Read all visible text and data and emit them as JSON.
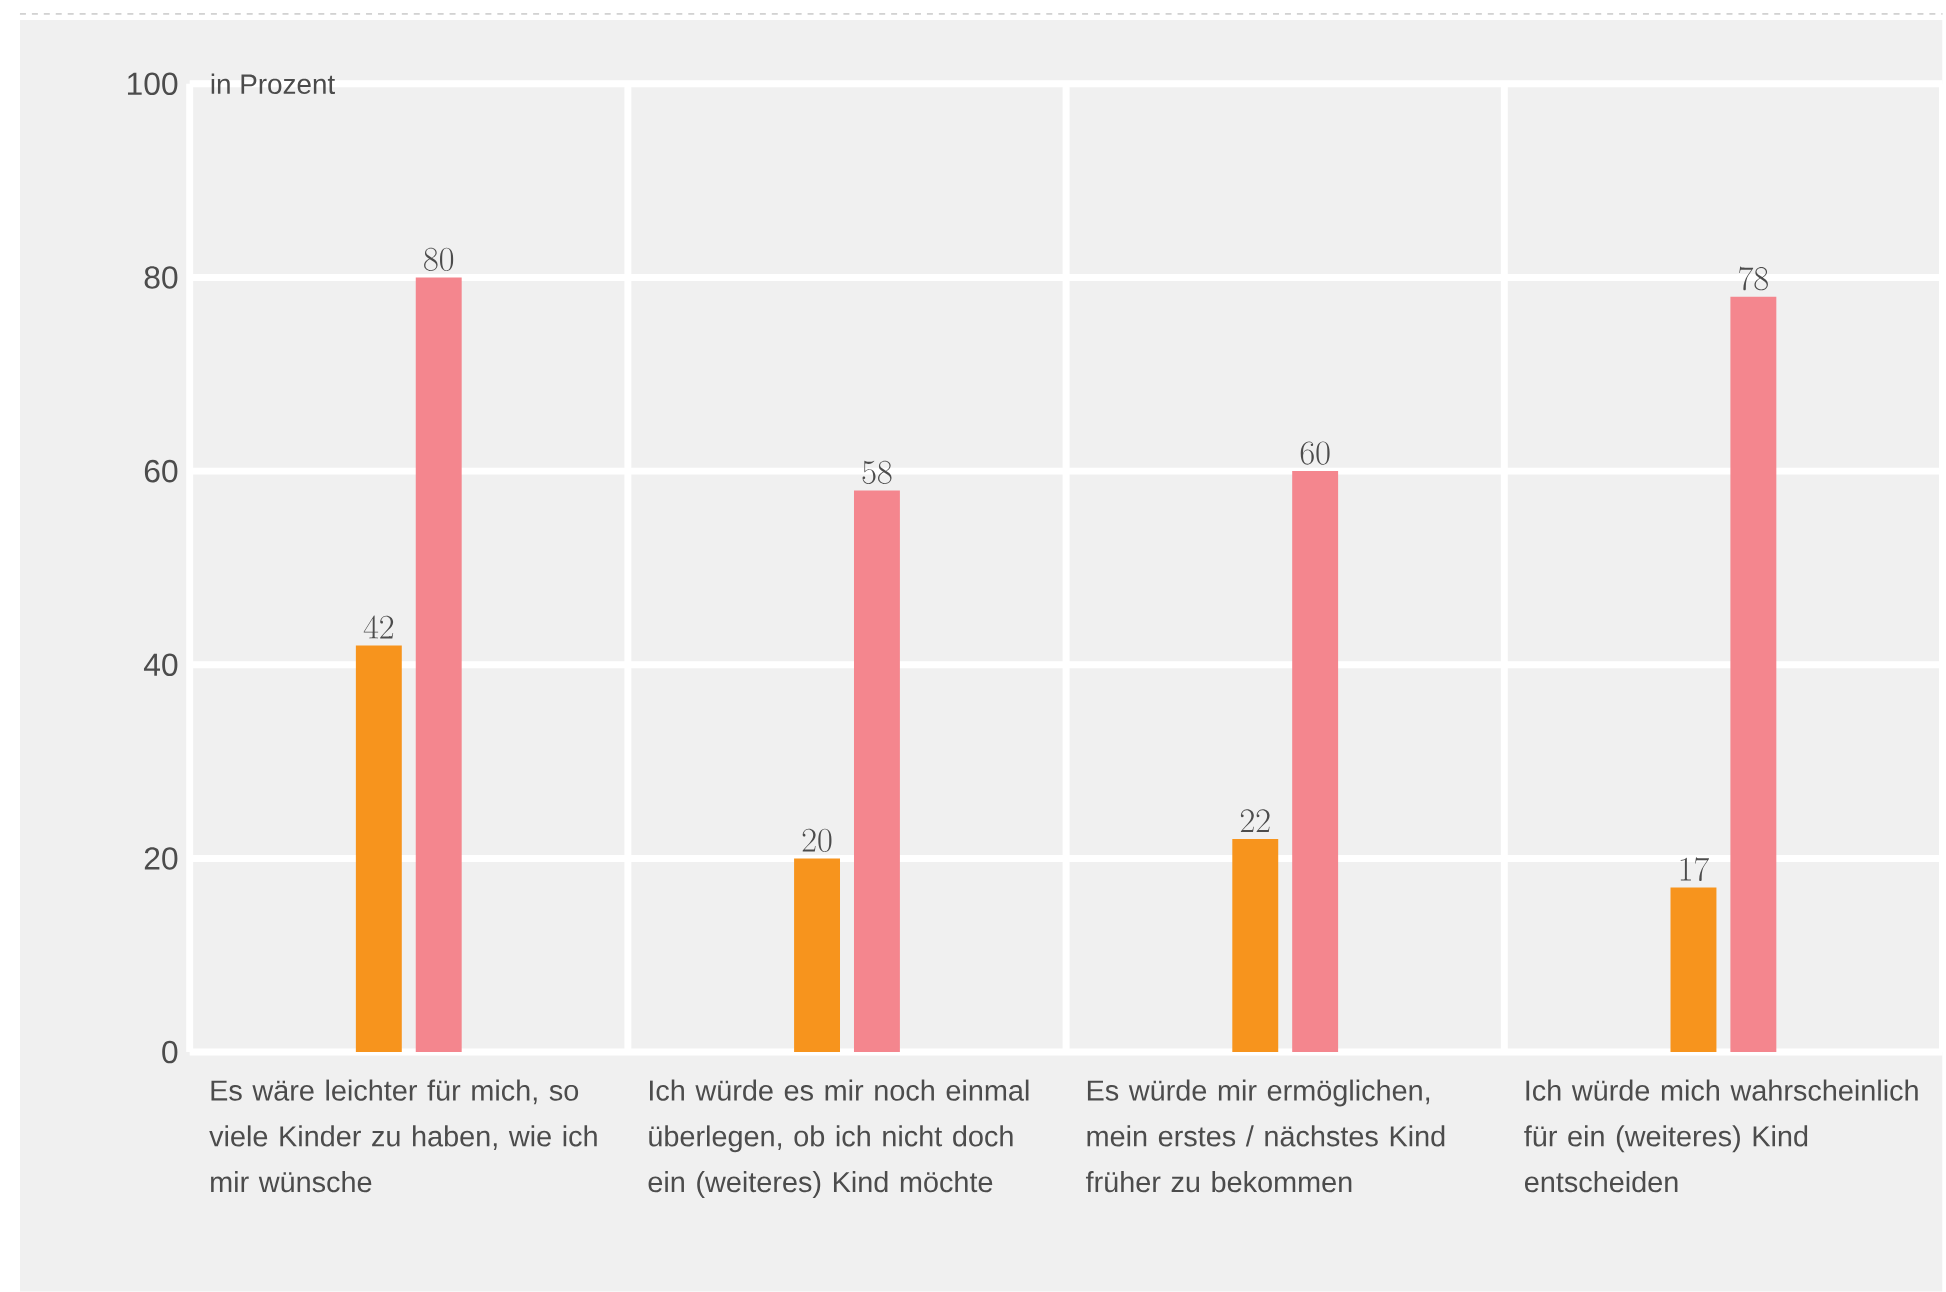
{
  "chart_data": {
    "type": "bar",
    "ylabel": "in Prozent",
    "categories": [
      "Es wäre leichter für mich, so viele Kinder zu haben, wie ich mir wünsche",
      "Ich würde es mir noch einmal überlegen, ob ich nicht doch ein (weiteres) Kind möchte",
      "Es würde mir ermöglichen, mein erstes / nächstes Kind früher zu bekommen",
      "Ich würde mich wahrscheinlich für ein (weiteres) Kind entscheiden"
    ],
    "series": [
      {
        "color": "#f7941d",
        "values": [
          42,
          20,
          22,
          17
        ]
      },
      {
        "color": "#f4868e",
        "values": [
          80,
          58,
          60,
          78
        ]
      }
    ],
    "ylim": [
      0,
      100
    ],
    "yticks": [
      0,
      20,
      40,
      60,
      80,
      100
    ],
    "grid": true,
    "data_labels": true
  }
}
